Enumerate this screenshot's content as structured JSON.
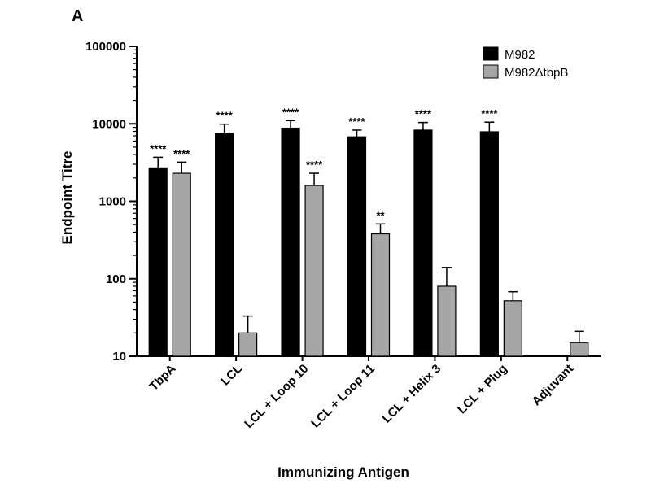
{
  "chart_data": {
    "type": "bar",
    "panel_label": "A",
    "title": "",
    "xlabel": "Immunizing Antigen",
    "ylabel": "Endpoint Titre",
    "yscale": "log",
    "ylim": [
      10,
      100000
    ],
    "yticks": [
      10,
      100,
      1000,
      10000,
      100000
    ],
    "ytick_labels": [
      "10",
      "100",
      "1000",
      "10000",
      "100000"
    ],
    "legend_position": "top-right",
    "grid": false,
    "categories": [
      "TbpA",
      "LCL",
      "LCL + Loop 10",
      "LCL + Loop 11",
      "LCL + Helix 3",
      "LCL + Plug",
      "Adjuvant"
    ],
    "series": [
      {
        "name": "M982",
        "color": "#000000",
        "values": [
          2700,
          7600,
          8800,
          6800,
          8300,
          7900,
          null
        ],
        "errors": [
          3700,
          9900,
          11000,
          8300,
          10400,
          10500,
          null
        ],
        "significance": [
          "****",
          "****",
          "****",
          "****",
          "****",
          "****",
          ""
        ]
      },
      {
        "name": "M982ΔtbpB",
        "color": "#a6a6a6",
        "values": [
          2300,
          20,
          1600,
          380,
          80,
          52,
          15
        ],
        "errors": [
          3200,
          33,
          2300,
          510,
          140,
          68,
          21
        ],
        "significance": [
          "****",
          "",
          "****",
          "**",
          "",
          "",
          ""
        ]
      }
    ]
  }
}
